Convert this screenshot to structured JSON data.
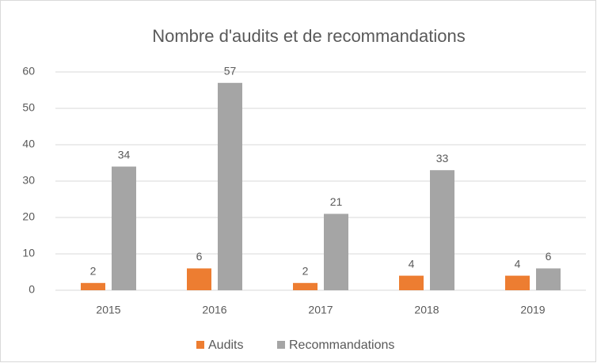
{
  "chart_data": {
    "type": "bar",
    "title": "Nombre d'audits et de recommandations",
    "categories": [
      "2015",
      "2016",
      "2017",
      "2018",
      "2019"
    ],
    "series": [
      {
        "name": "Audits",
        "color": "#ed7d31",
        "values": [
          2,
          6,
          2,
          4,
          4
        ]
      },
      {
        "name": "Recommandations",
        "color": "#a5a5a5",
        "values": [
          34,
          57,
          21,
          33,
          6
        ]
      }
    ],
    "ylim": [
      0,
      60
    ],
    "yticks": [
      0,
      10,
      20,
      30,
      40,
      50,
      60
    ],
    "grid": true,
    "legend": "bottom"
  }
}
